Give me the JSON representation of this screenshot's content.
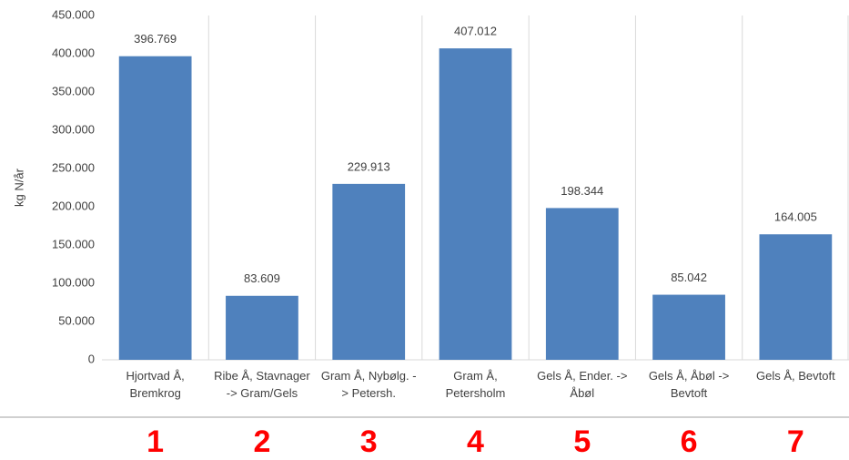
{
  "chart_data": {
    "type": "bar",
    "y_label": "kg N/år",
    "categories": [
      "Hjortvad Å, Bremkrog",
      "Ribe Å, Stavnager -> Gram/Gels",
      "Gram Å, Nybølg. -> Petersh.",
      "Gram Å, Petersholm",
      "Gels Å, Ender. -> Åbøl",
      "Gels Å, Åbøl -> Bevtoft",
      "Gels Å, Bevtoft"
    ],
    "values": [
      396769,
      83609,
      229913,
      407012,
      198344,
      85042,
      164005
    ],
    "value_labels": [
      "396.769",
      "83.609",
      "229.913",
      "407.012",
      "198.344",
      "85.042",
      "164.005"
    ],
    "color": "#4f81bd",
    "ylim": [
      0,
      450000
    ],
    "yticks": [
      0,
      {
        "value": 50000,
        "label": "50.000"
      },
      {
        "value": 100000,
        "label": "100.000"
      },
      {
        "value": 150000,
        "label": "150.000"
      },
      {
        "value": 200000,
        "label": "200.000"
      },
      {
        "value": 250000,
        "label": "250.000"
      },
      {
        "value": 300000,
        "label": "300.000"
      },
      {
        "value": 350000,
        "label": "350.000"
      },
      {
        "value": 400000,
        "label": "400.000"
      },
      {
        "value": 450000,
        "label": "450.000"
      }
    ],
    "annotations": [
      "1",
      "2",
      "3",
      "4",
      "5",
      "6",
      "7"
    ]
  }
}
